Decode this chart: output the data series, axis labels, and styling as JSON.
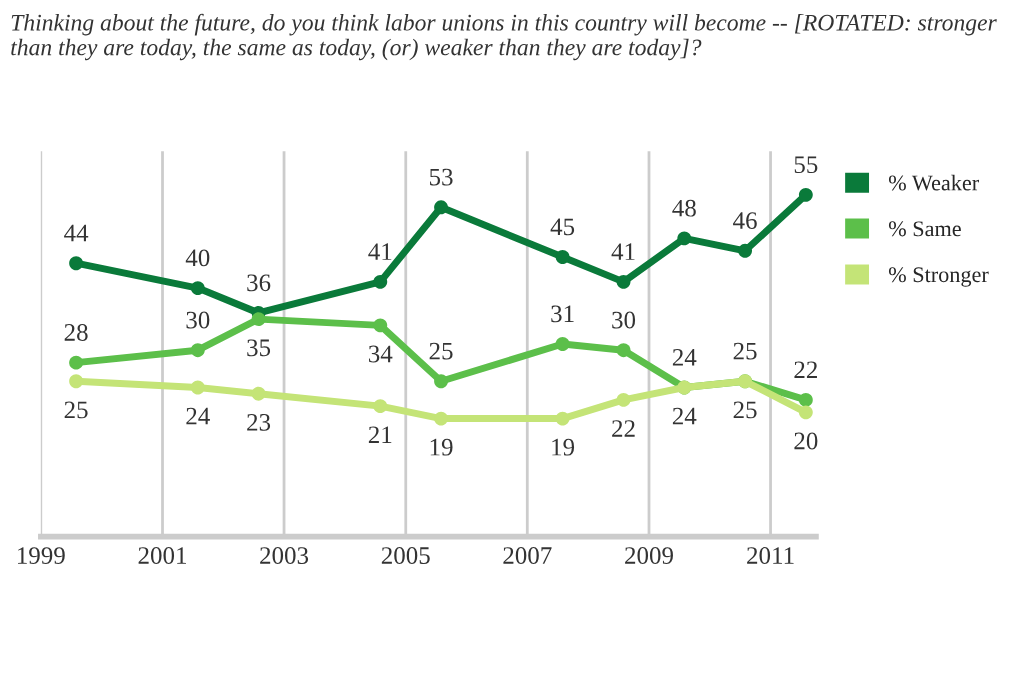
{
  "chart_data": {
    "type": "line",
    "title": "Thinking about the future, do you think labor unions in this country will become -- [ROTATED: stronger than they are today, the same as today, (or) weaker than they are today]?",
    "x": [
      "1999-08",
      "2001-08",
      "2002-08",
      "2004-08",
      "2005-08",
      "2007-08",
      "2008-08",
      "2009-08",
      "2010-08",
      "2011-08"
    ],
    "series": [
      {
        "name": "% Weaker",
        "color": "#0a7a3a",
        "values": [
          44,
          40,
          36,
          41,
          53,
          45,
          41,
          48,
          46,
          55
        ]
      },
      {
        "name": "% Same",
        "color": "#5cbf4a",
        "values": [
          28,
          30,
          35,
          34,
          25,
          31,
          30,
          24,
          25,
          22
        ]
      },
      {
        "name": "% Stronger",
        "color": "#c4e477",
        "values": [
          25,
          24,
          23,
          21,
          19,
          19,
          22,
          24,
          25,
          20
        ]
      }
    ],
    "ylim": [
      0,
      62
    ],
    "xlim": [
      "1999-01",
      "2011-10"
    ],
    "xticks": [
      "1999",
      "2001",
      "2003",
      "2005",
      "2007",
      "2009",
      "2011"
    ],
    "tick_labels": "x",
    "grid": "x",
    "legend": "right",
    "marker": "circle",
    "line_style": "solid",
    "data_labels": true
  }
}
